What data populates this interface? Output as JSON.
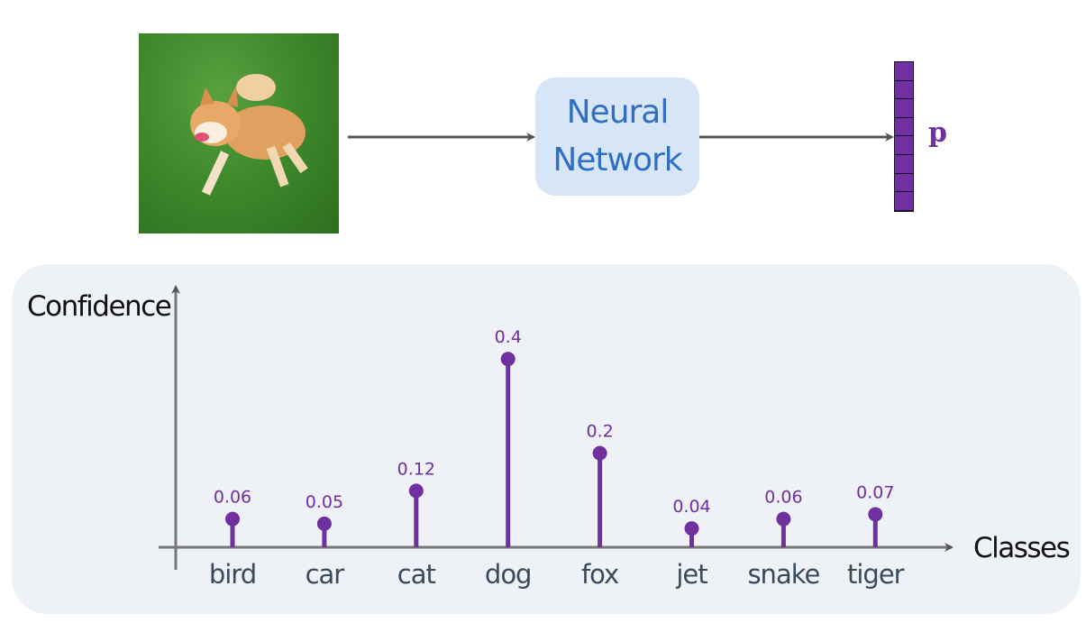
{
  "network_label_line1": "Neural",
  "network_label_line2": "Network",
  "output_vector_label": "p",
  "colors": {
    "accent": "#7030a0",
    "network_box": "#d6e6f7",
    "network_text": "#2f6ec4",
    "panel": "#eef1f5",
    "category_text": "#3a4a5c"
  },
  "chart_data": {
    "type": "stem",
    "xlabel": "Classes",
    "ylabel": "Confidence",
    "categories": [
      "bird",
      "car",
      "cat",
      "dog",
      "fox",
      "jet",
      "snake",
      "tiger"
    ],
    "values": [
      0.06,
      0.05,
      0.12,
      0.4,
      0.2,
      0.04,
      0.06,
      0.07
    ],
    "data_labels": [
      "0.06",
      "0.05",
      "0.12",
      "0.4",
      "0.2",
      "0.04",
      "0.06",
      "0.07"
    ],
    "ylim": [
      0,
      0.5
    ],
    "grid": false
  }
}
